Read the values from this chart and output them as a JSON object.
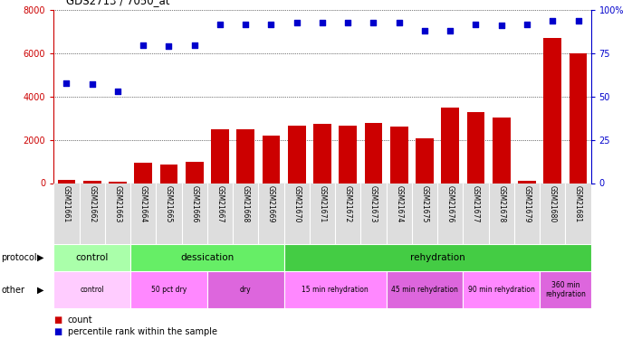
{
  "title": "GDS2713 / 7050_at",
  "samples": [
    "GSM21661",
    "GSM21662",
    "GSM21663",
    "GSM21664",
    "GSM21665",
    "GSM21666",
    "GSM21667",
    "GSM21668",
    "GSM21669",
    "GSM21670",
    "GSM21671",
    "GSM21672",
    "GSM21673",
    "GSM21674",
    "GSM21675",
    "GSM21676",
    "GSM21677",
    "GSM21678",
    "GSM21679",
    "GSM21680",
    "GSM21681"
  ],
  "counts": [
    150,
    120,
    80,
    950,
    850,
    1000,
    2500,
    2500,
    2200,
    2650,
    2720,
    2650,
    2780,
    2600,
    2050,
    3500,
    3300,
    3050,
    100,
    6700,
    6000
  ],
  "percentile_ranks": [
    58,
    57,
    53,
    80,
    79,
    80,
    92,
    92,
    92,
    93,
    93,
    93,
    93,
    93,
    88,
    88,
    92,
    91,
    92,
    94,
    94
  ],
  "bar_color": "#cc0000",
  "dot_color": "#0000cc",
  "ylim_left": [
    0,
    8000
  ],
  "ylim_right": [
    0,
    100
  ],
  "yticks_left": [
    0,
    2000,
    4000,
    6000,
    8000
  ],
  "yticks_right": [
    0,
    25,
    50,
    75,
    100
  ],
  "ytick_labels_right": [
    "0",
    "25",
    "50",
    "75",
    "100%"
  ],
  "protocol_row": {
    "groups": [
      {
        "label": "control",
        "start": 0,
        "end": 3,
        "color": "#aaffaa"
      },
      {
        "label": "dessication",
        "start": 3,
        "end": 9,
        "color": "#66ee66"
      },
      {
        "label": "rehydration",
        "start": 9,
        "end": 21,
        "color": "#44cc44"
      }
    ]
  },
  "other_row": {
    "groups": [
      {
        "label": "control",
        "start": 0,
        "end": 3,
        "color": "#ffccff"
      },
      {
        "label": "50 pct dry",
        "start": 3,
        "end": 6,
        "color": "#ff88ff"
      },
      {
        "label": "dry",
        "start": 6,
        "end": 9,
        "color": "#dd66dd"
      },
      {
        "label": "15 min rehydration",
        "start": 9,
        "end": 13,
        "color": "#ff88ff"
      },
      {
        "label": "45 min rehydration",
        "start": 13,
        "end": 16,
        "color": "#dd66dd"
      },
      {
        "label": "90 min rehydration",
        "start": 16,
        "end": 19,
        "color": "#ff88ff"
      },
      {
        "label": "360 min\nrehydration",
        "start": 19,
        "end": 21,
        "color": "#dd66dd"
      }
    ]
  },
  "bg_color": "#ffffff",
  "tick_label_color_left": "#cc0000",
  "tick_label_color_right": "#0000cc",
  "xlabels_bg": "#dddddd"
}
